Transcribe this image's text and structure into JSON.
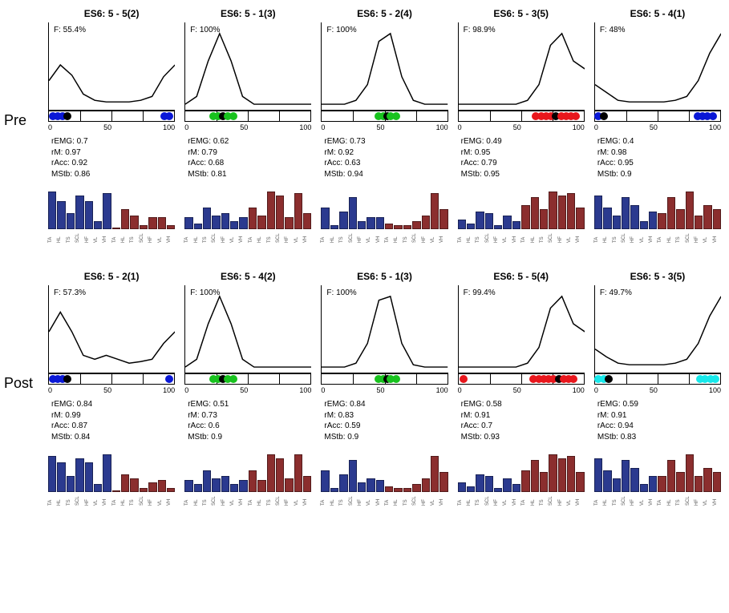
{
  "rowLabels": [
    "Pre",
    "Post"
  ],
  "xticks": [
    "0",
    "50",
    "100"
  ],
  "barLabels": [
    "TA",
    "HL",
    "TS",
    "SCL",
    "HF",
    "VL",
    "VH",
    "TA",
    "HL",
    "TS",
    "SCL",
    "HF",
    "VL",
    "VH"
  ],
  "barColors": {
    "left": "#2b3a8f",
    "right": "#8b2e2e"
  },
  "segBorders": [
    25,
    50,
    75
  ],
  "dotColors": {
    "blue": "#0a18d6",
    "green": "#18c21e",
    "red": "#e8161c",
    "cyan": "#17e8ea",
    "black": "#000"
  },
  "dotSize": 10,
  "rows": [
    {
      "panels": [
        {
          "title": "ES6: 5 - 5(2)",
          "F": "F: 55.4%",
          "curve": [
            0.35,
            0.55,
            0.42,
            0.18,
            0.1,
            0.08,
            0.08,
            0.08,
            0.1,
            0.15,
            0.4,
            0.55
          ],
          "dots": [
            {
              "x": 3,
              "c": "blue"
            },
            {
              "x": 7,
              "c": "blue"
            },
            {
              "x": 11,
              "c": "blue"
            },
            {
              "x": 15,
              "c": "black"
            },
            {
              "x": 92,
              "c": "blue"
            },
            {
              "x": 96,
              "c": "blue"
            }
          ],
          "stats": {
            "rEMG": "0.7",
            "rM": "0.97",
            "rAcc": "0.92",
            "MStb": "0.86"
          },
          "bars": [
            0.95,
            0.7,
            0.4,
            0.85,
            0.7,
            0.2,
            0.9,
            0.05,
            0.5,
            0.35,
            0.1,
            0.3,
            0.3,
            0.1
          ]
        },
        {
          "title": "ES6: 5 - 1(3)",
          "F": "F: 100%",
          "curve": [
            0.05,
            0.15,
            0.6,
            0.95,
            0.6,
            0.15,
            0.05,
            0.05,
            0.05,
            0.05,
            0.05,
            0.05
          ],
          "dots": [
            {
              "x": 22,
              "c": "green"
            },
            {
              "x": 26,
              "c": "green"
            },
            {
              "x": 30,
              "c": "black"
            },
            {
              "x": 34,
              "c": "green"
            },
            {
              "x": 38,
              "c": "green"
            }
          ],
          "stats": {
            "rEMG": "0.62",
            "rM": "0.79",
            "rAcc": "0.68",
            "MStb": "0.81"
          },
          "bars": [
            0.3,
            0.15,
            0.55,
            0.35,
            0.4,
            0.2,
            0.3,
            0.55,
            0.35,
            0.95,
            0.85,
            0.3,
            0.9,
            0.4
          ]
        },
        {
          "title": "ES6: 5 - 2(4)",
          "F": "F: 100%",
          "curve": [
            0.05,
            0.05,
            0.05,
            0.1,
            0.3,
            0.85,
            0.95,
            0.4,
            0.1,
            0.05,
            0.05,
            0.05
          ],
          "dots": [
            {
              "x": 45,
              "c": "green"
            },
            {
              "x": 49,
              "c": "green"
            },
            {
              "x": 52,
              "c": "black"
            },
            {
              "x": 55,
              "c": "green"
            },
            {
              "x": 59,
              "c": "green"
            }
          ],
          "stats": {
            "rEMG": "0.73",
            "rM": "0.92",
            "rAcc": "0.63",
            "MStb": "0.94"
          },
          "bars": [
            0.55,
            0.1,
            0.45,
            0.8,
            0.2,
            0.3,
            0.3,
            0.15,
            0.1,
            0.1,
            0.2,
            0.35,
            0.9,
            0.5
          ]
        },
        {
          "title": "ES6: 5 - 3(5)",
          "F": "F: 98.9%",
          "curve": [
            0.05,
            0.05,
            0.05,
            0.05,
            0.05,
            0.05,
            0.1,
            0.3,
            0.8,
            0.95,
            0.6,
            0.5
          ],
          "dots": [
            {
              "x": 62,
              "c": "red"
            },
            {
              "x": 66,
              "c": "red"
            },
            {
              "x": 70,
              "c": "red"
            },
            {
              "x": 74,
              "c": "red"
            },
            {
              "x": 78,
              "c": "black"
            },
            {
              "x": 82,
              "c": "red"
            },
            {
              "x": 86,
              "c": "red"
            },
            {
              "x": 90,
              "c": "red"
            },
            {
              "x": 94,
              "c": "red"
            }
          ],
          "stats": {
            "rEMG": "0.49",
            "rM": "0.95",
            "rAcc": "0.79",
            "MStb": "0.95"
          },
          "bars": [
            0.25,
            0.15,
            0.45,
            0.4,
            0.1,
            0.35,
            0.2,
            0.6,
            0.8,
            0.5,
            0.95,
            0.85,
            0.9,
            0.55
          ]
        },
        {
          "title": "ES6: 5 - 4(1)",
          "F": "F: 48%",
          "curve": [
            0.3,
            0.2,
            0.1,
            0.08,
            0.08,
            0.08,
            0.08,
            0.1,
            0.15,
            0.35,
            0.7,
            0.95
          ],
          "dots": [
            {
              "x": 3,
              "c": "blue"
            },
            {
              "x": 7,
              "c": "black"
            },
            {
              "x": 82,
              "c": "blue"
            },
            {
              "x": 86,
              "c": "blue"
            },
            {
              "x": 90,
              "c": "blue"
            },
            {
              "x": 94,
              "c": "blue"
            }
          ],
          "stats": {
            "rEMG": "0.4",
            "rM": "0.98",
            "rAcc": "0.95",
            "MStb": "0.9"
          },
          "bars": [
            0.85,
            0.55,
            0.35,
            0.8,
            0.6,
            0.2,
            0.45,
            0.4,
            0.8,
            0.5,
            0.95,
            0.35,
            0.6,
            0.5
          ]
        }
      ]
    },
    {
      "panels": [
        {
          "title": "ES6: 5 - 2(1)",
          "F": "F: 57.3%",
          "curve": [
            0.5,
            0.75,
            0.5,
            0.2,
            0.15,
            0.2,
            0.15,
            0.1,
            0.12,
            0.15,
            0.35,
            0.5
          ],
          "dots": [
            {
              "x": 3,
              "c": "blue"
            },
            {
              "x": 7,
              "c": "blue"
            },
            {
              "x": 11,
              "c": "blue"
            },
            {
              "x": 15,
              "c": "black"
            },
            {
              "x": 96,
              "c": "blue"
            }
          ],
          "stats": {
            "rEMG": "0.84",
            "rM": "0.99",
            "rAcc": "0.87",
            "MStb": "0.84"
          },
          "bars": [
            0.9,
            0.75,
            0.4,
            0.85,
            0.75,
            0.2,
            0.95,
            0.05,
            0.45,
            0.35,
            0.1,
            0.25,
            0.3,
            0.1
          ]
        },
        {
          "title": "ES6: 5 - 4(2)",
          "F": "F: 100%",
          "curve": [
            0.05,
            0.15,
            0.6,
            0.95,
            0.6,
            0.15,
            0.05,
            0.05,
            0.05,
            0.05,
            0.05,
            0.05
          ],
          "dots": [
            {
              "x": 22,
              "c": "green"
            },
            {
              "x": 26,
              "c": "green"
            },
            {
              "x": 30,
              "c": "black"
            },
            {
              "x": 34,
              "c": "green"
            },
            {
              "x": 38,
              "c": "green"
            }
          ],
          "stats": {
            "rEMG": "0.51",
            "rM": "0.73",
            "rAcc": "0.6",
            "MStb": "0.9"
          },
          "bars": [
            0.3,
            0.2,
            0.55,
            0.35,
            0.4,
            0.2,
            0.3,
            0.55,
            0.3,
            0.95,
            0.85,
            0.35,
            0.95,
            0.4
          ]
        },
        {
          "title": "ES6: 5 - 1(3)",
          "F": "F: 100%",
          "curve": [
            0.05,
            0.05,
            0.05,
            0.1,
            0.35,
            0.9,
            0.95,
            0.35,
            0.08,
            0.05,
            0.05,
            0.05
          ],
          "dots": [
            {
              "x": 45,
              "c": "green"
            },
            {
              "x": 49,
              "c": "green"
            },
            {
              "x": 52,
              "c": "black"
            },
            {
              "x": 55,
              "c": "green"
            },
            {
              "x": 59,
              "c": "green"
            }
          ],
          "stats": {
            "rEMG": "0.84",
            "rM": "0.83",
            "rAcc": "0.59",
            "MStb": "0.9"
          },
          "bars": [
            0.55,
            0.1,
            0.45,
            0.8,
            0.25,
            0.35,
            0.3,
            0.15,
            0.1,
            0.1,
            0.2,
            0.35,
            0.9,
            0.5
          ]
        },
        {
          "title": "ES6: 5 - 5(4)",
          "F": "F: 99.4%",
          "curve": [
            0.05,
            0.05,
            0.05,
            0.05,
            0.05,
            0.05,
            0.1,
            0.3,
            0.8,
            0.95,
            0.6,
            0.5
          ],
          "dots": [
            {
              "x": 4,
              "c": "red"
            },
            {
              "x": 60,
              "c": "red"
            },
            {
              "x": 64,
              "c": "red"
            },
            {
              "x": 68,
              "c": "red"
            },
            {
              "x": 72,
              "c": "red"
            },
            {
              "x": 76,
              "c": "red"
            },
            {
              "x": 80,
              "c": "black"
            },
            {
              "x": 84,
              "c": "red"
            },
            {
              "x": 88,
              "c": "red"
            },
            {
              "x": 92,
              "c": "red"
            }
          ],
          "stats": {
            "rEMG": "0.58",
            "rM": "0.91",
            "rAcc": "0.7",
            "MStb": "0.93"
          },
          "bars": [
            0.25,
            0.15,
            0.45,
            0.4,
            0.1,
            0.35,
            0.2,
            0.55,
            0.8,
            0.5,
            0.95,
            0.85,
            0.9,
            0.5
          ]
        },
        {
          "title": "ES6: 5 - 3(5)",
          "F": "F: 49.7%",
          "curve": [
            0.28,
            0.18,
            0.1,
            0.08,
            0.08,
            0.08,
            0.08,
            0.1,
            0.15,
            0.35,
            0.7,
            0.95
          ],
          "dots": [
            {
              "x": 3,
              "c": "cyan"
            },
            {
              "x": 7,
              "c": "cyan"
            },
            {
              "x": 11,
              "c": "black"
            },
            {
              "x": 84,
              "c": "cyan"
            },
            {
              "x": 88,
              "c": "cyan"
            },
            {
              "x": 92,
              "c": "cyan"
            },
            {
              "x": 96,
              "c": "cyan"
            }
          ],
          "stats": {
            "rEMG": "0.59",
            "rM": "0.91",
            "rAcc": "0.94",
            "MStb": "0.83"
          },
          "bars": [
            0.85,
            0.55,
            0.35,
            0.8,
            0.6,
            0.2,
            0.4,
            0.4,
            0.8,
            0.5,
            0.95,
            0.4,
            0.6,
            0.5
          ]
        }
      ]
    }
  ]
}
